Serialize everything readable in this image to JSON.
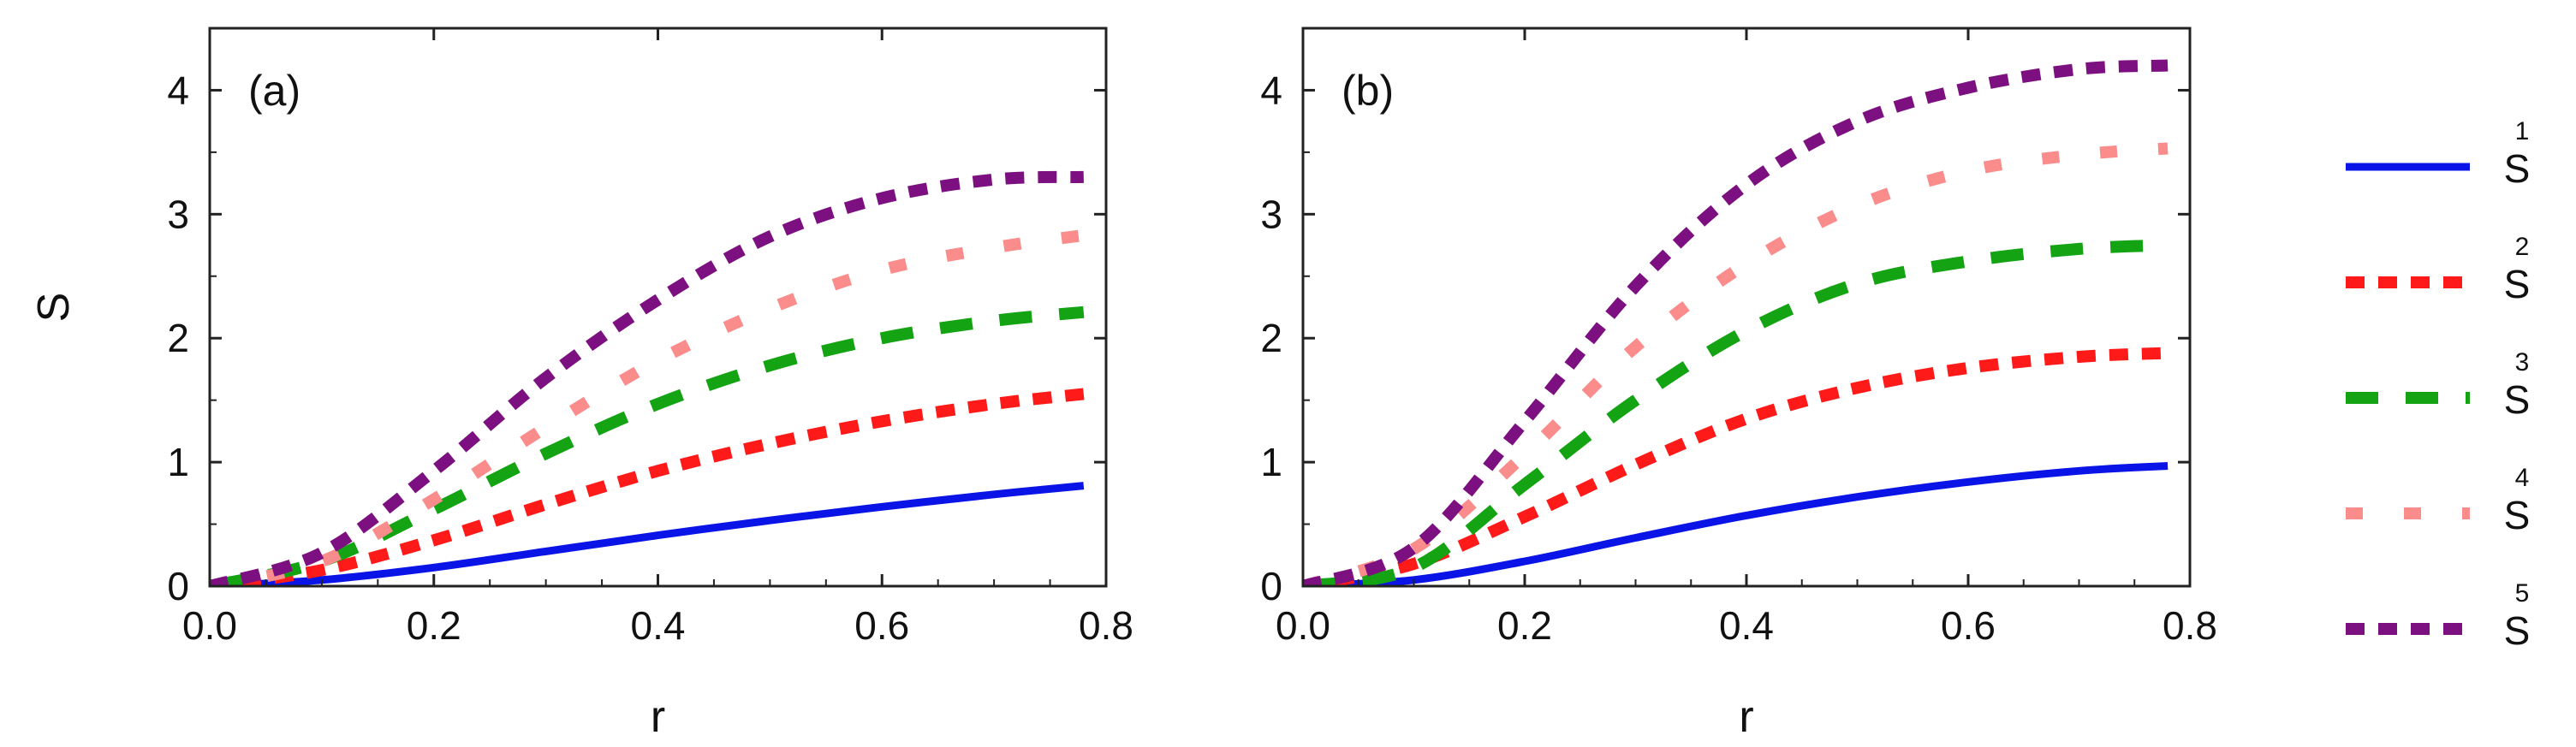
{
  "chart_data": [
    {
      "type": "line",
      "panel_label": "(a)",
      "xlabel": "r",
      "ylabel": "S",
      "xlim": [
        0,
        0.8
      ],
      "ylim": [
        0,
        4.5
      ],
      "x_ticks": [
        "0.0",
        "0.2",
        "0.4",
        "0.6",
        "0.8"
      ],
      "y_ticks": [
        "0",
        "1",
        "2",
        "3",
        "4"
      ],
      "x": [
        0.0,
        0.1,
        0.2,
        0.3,
        0.4,
        0.5,
        0.6,
        0.7,
        0.78
      ],
      "series": [
        {
          "name": "S1",
          "values": [
            0.0,
            0.05,
            0.15,
            0.28,
            0.41,
            0.53,
            0.64,
            0.74,
            0.81
          ]
        },
        {
          "name": "S2",
          "values": [
            0.0,
            0.13,
            0.37,
            0.66,
            0.93,
            1.15,
            1.33,
            1.47,
            1.55
          ]
        },
        {
          "name": "S3",
          "values": [
            0.0,
            0.2,
            0.62,
            1.07,
            1.47,
            1.78,
            2.0,
            2.14,
            2.21
          ]
        },
        {
          "name": "S4",
          "values": [
            0.0,
            0.2,
            0.7,
            1.28,
            1.82,
            2.24,
            2.55,
            2.73,
            2.83
          ]
        },
        {
          "name": "S5",
          "values": [
            0.0,
            0.27,
            0.93,
            1.68,
            2.31,
            2.82,
            3.13,
            3.28,
            3.3
          ]
        }
      ]
    },
    {
      "type": "line",
      "panel_label": "(b)",
      "xlabel": "r",
      "ylabel": "",
      "xlim": [
        0,
        0.8
      ],
      "ylim": [
        0,
        4.5
      ],
      "x_ticks": [
        "0.0",
        "0.2",
        "0.4",
        "0.6",
        "0.8"
      ],
      "y_ticks": [
        "0",
        "1",
        "2",
        "3",
        "4"
      ],
      "x": [
        0.0,
        0.1,
        0.2,
        0.3,
        0.4,
        0.5,
        0.6,
        0.7,
        0.78
      ],
      "series": [
        {
          "name": "S1",
          "values": [
            0.0,
            0.05,
            0.2,
            0.39,
            0.57,
            0.72,
            0.84,
            0.93,
            0.97
          ]
        },
        {
          "name": "S2",
          "values": [
            0.0,
            0.18,
            0.56,
            0.98,
            1.35,
            1.6,
            1.76,
            1.85,
            1.88
          ]
        },
        {
          "name": "S3",
          "values": [
            0.0,
            0.15,
            0.82,
            1.5,
            2.06,
            2.44,
            2.62,
            2.72,
            2.75
          ]
        },
        {
          "name": "S4",
          "values": [
            0.0,
            0.3,
            1.06,
            1.93,
            2.6,
            3.07,
            3.35,
            3.48,
            3.53
          ]
        },
        {
          "name": "S5",
          "values": [
            0.0,
            0.31,
            1.33,
            2.42,
            3.24,
            3.75,
            4.02,
            4.17,
            4.2
          ]
        }
      ]
    }
  ],
  "legend": [
    {
      "series": "S1",
      "label": "S",
      "sup": "1",
      "color": "#0a14e6",
      "style": "solid"
    },
    {
      "series": "S2",
      "label": "S",
      "sup": "2",
      "color": "#ff1a1a",
      "style": "short-dash"
    },
    {
      "series": "S3",
      "label": "S",
      "sup": "3",
      "color": "#13a313",
      "style": "long-dash"
    },
    {
      "series": "S4",
      "label": "S",
      "sup": "4",
      "color": "#fa8c8c",
      "style": "sparse-dash"
    },
    {
      "series": "S5",
      "label": "S",
      "sup": "5",
      "color": "#7d1080",
      "style": "short-dash"
    }
  ]
}
